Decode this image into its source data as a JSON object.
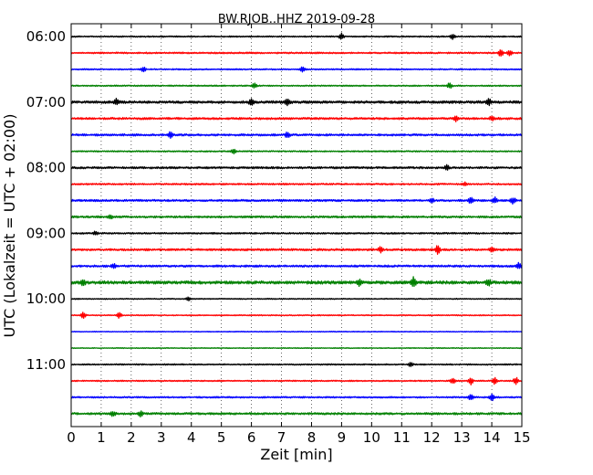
{
  "chart_data": {
    "type": "line",
    "title": "BW.RJOB..HHZ 2019-09-28",
    "xlabel": "Zeit  [min]",
    "ylabel": "UTC (Lokalzeit = UTC + 02:00)",
    "xlim": [
      0,
      15
    ],
    "x_ticks": [
      "0",
      "1",
      "2",
      "3",
      "4",
      "5",
      "6",
      "7",
      "8",
      "9",
      "10",
      "11",
      "12",
      "13",
      "14",
      "15"
    ],
    "y_ticks": [
      "06:00",
      "07:00",
      "08:00",
      "09:00",
      "10:00",
      "11:00"
    ],
    "grid": "vertical dotted",
    "trace_interval_minutes": 15,
    "trace_colors": [
      "#000000",
      "#ff0000",
      "#0000ff",
      "#008000"
    ],
    "traces": [
      {
        "start": "06:00",
        "color": "#000000",
        "noise": 0.05,
        "events": [
          {
            "t": 9.0,
            "amp": 0.35
          },
          {
            "t": 12.7,
            "amp": 0.3
          }
        ]
      },
      {
        "start": "06:15",
        "color": "#ff0000",
        "noise": 0.06,
        "events": [
          {
            "t": 14.3,
            "amp": 0.45
          },
          {
            "t": 14.6,
            "amp": 0.3
          }
        ]
      },
      {
        "start": "06:30",
        "color": "#0000ff",
        "noise": 0.05,
        "events": [
          {
            "t": 2.4,
            "amp": 0.3
          },
          {
            "t": 7.7,
            "amp": 0.3
          }
        ]
      },
      {
        "start": "06:45",
        "color": "#008000",
        "noise": 0.05,
        "events": [
          {
            "t": 6.1,
            "amp": 0.25
          },
          {
            "t": 12.6,
            "amp": 0.3
          }
        ]
      },
      {
        "start": "07:00",
        "color": "#000000",
        "noise": 0.1,
        "events": [
          {
            "t": 1.5,
            "amp": 0.35
          },
          {
            "t": 6.0,
            "amp": 0.35
          },
          {
            "t": 7.2,
            "amp": 0.3
          },
          {
            "t": 13.9,
            "amp": 0.35
          }
        ]
      },
      {
        "start": "07:15",
        "color": "#ff0000",
        "noise": 0.08,
        "events": [
          {
            "t": 12.8,
            "amp": 0.35
          },
          {
            "t": 14.0,
            "amp": 0.3
          }
        ]
      },
      {
        "start": "07:30",
        "color": "#0000ff",
        "noise": 0.08,
        "events": [
          {
            "t": 3.3,
            "amp": 0.3
          },
          {
            "t": 7.2,
            "amp": 0.3
          }
        ]
      },
      {
        "start": "07:45",
        "color": "#008000",
        "noise": 0.05,
        "events": [
          {
            "t": 5.4,
            "amp": 0.3
          }
        ]
      },
      {
        "start": "08:00",
        "color": "#000000",
        "noise": 0.08,
        "events": [
          {
            "t": 12.5,
            "amp": 0.3
          }
        ]
      },
      {
        "start": "08:15",
        "color": "#ff0000",
        "noise": 0.06,
        "events": [
          {
            "t": 13.1,
            "amp": 0.2
          }
        ]
      },
      {
        "start": "08:30",
        "color": "#0000ff",
        "noise": 0.08,
        "events": [
          {
            "t": 12.0,
            "amp": 0.3
          },
          {
            "t": 13.3,
            "amp": 0.45
          },
          {
            "t": 14.1,
            "amp": 0.35
          },
          {
            "t": 14.7,
            "amp": 0.35
          }
        ]
      },
      {
        "start": "08:45",
        "color": "#008000",
        "noise": 0.08,
        "events": [
          {
            "t": 1.3,
            "amp": 0.25
          }
        ]
      },
      {
        "start": "09:00",
        "color": "#000000",
        "noise": 0.06,
        "events": [
          {
            "t": 0.8,
            "amp": 0.2
          }
        ]
      },
      {
        "start": "09:15",
        "color": "#ff0000",
        "noise": 0.08,
        "events": [
          {
            "t": 10.3,
            "amp": 0.3
          },
          {
            "t": 12.2,
            "amp": 0.45
          },
          {
            "t": 14.0,
            "amp": 0.3
          }
        ]
      },
      {
        "start": "09:30",
        "color": "#0000ff",
        "noise": 0.08,
        "events": [
          {
            "t": 1.4,
            "amp": 0.3
          },
          {
            "t": 14.9,
            "amp": 0.35
          }
        ]
      },
      {
        "start": "09:45",
        "color": "#008000",
        "noise": 0.12,
        "events": [
          {
            "t": 0.4,
            "amp": 0.3
          },
          {
            "t": 9.6,
            "amp": 0.3
          },
          {
            "t": 11.4,
            "amp": 0.6
          },
          {
            "t": 13.9,
            "amp": 0.35
          }
        ]
      },
      {
        "start": "10:00",
        "color": "#000000",
        "noise": 0.04,
        "events": [
          {
            "t": 3.9,
            "amp": 0.2
          }
        ]
      },
      {
        "start": "10:15",
        "color": "#ff0000",
        "noise": 0.04,
        "events": [
          {
            "t": 0.4,
            "amp": 0.35
          },
          {
            "t": 1.6,
            "amp": 0.3
          }
        ]
      },
      {
        "start": "10:30",
        "color": "#0000ff",
        "noise": 0.03,
        "events": []
      },
      {
        "start": "10:45",
        "color": "#008000",
        "noise": 0.03,
        "events": []
      },
      {
        "start": "11:00",
        "color": "#000000",
        "noise": 0.05,
        "events": [
          {
            "t": 11.3,
            "amp": 0.3
          }
        ]
      },
      {
        "start": "11:15",
        "color": "#ff0000",
        "noise": 0.05,
        "events": [
          {
            "t": 12.7,
            "amp": 0.35
          },
          {
            "t": 13.3,
            "amp": 0.4
          },
          {
            "t": 14.1,
            "amp": 0.35
          },
          {
            "t": 14.8,
            "amp": 0.4
          }
        ]
      },
      {
        "start": "11:30",
        "color": "#0000ff",
        "noise": 0.06,
        "events": [
          {
            "t": 13.3,
            "amp": 0.35
          },
          {
            "t": 14.0,
            "amp": 0.35
          }
        ]
      },
      {
        "start": "11:45",
        "color": "#008000",
        "noise": 0.08,
        "events": [
          {
            "t": 1.4,
            "amp": 0.3
          },
          {
            "t": 2.3,
            "amp": 0.3
          }
        ]
      }
    ]
  }
}
